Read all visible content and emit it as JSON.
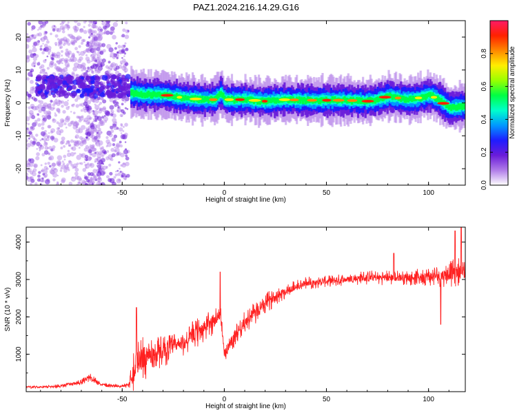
{
  "title": "PAZ1.2024.216.14.29.G16",
  "chart_data": [
    {
      "type": "heatmap",
      "xlabel": "Height of straight line (km)",
      "ylabel": "Frequency (Hz)",
      "xlim": [
        -97,
        118
      ],
      "ylim": [
        -25,
        25
      ],
      "xticks": [
        -50,
        0,
        50,
        100
      ],
      "yticks": [
        -20,
        -10,
        0,
        10,
        20
      ],
      "colorbar": {
        "label": "Normalized spectral amplitude",
        "range": [
          0.0,
          1.0
        ],
        "ticks": [
          "0.0",
          "0.2",
          "0.4",
          "0.6",
          "0.8"
        ],
        "colors": [
          "#ffffff",
          "#b07ce8",
          "#6a1cd9",
          "#1f1cff",
          "#0099ff",
          "#00ffcc",
          "#00ff44",
          "#99ff00",
          "#ffee00",
          "#ff8800",
          "#ff2200",
          "#ff1a66"
        ]
      },
      "ridge": {
        "x": [
          -46,
          -40,
          -30,
          -20,
          -10,
          -5,
          -2,
          0,
          10,
          20,
          30,
          40,
          50,
          60,
          70,
          75,
          80,
          90,
          95,
          100,
          105,
          110,
          118
        ],
        "y": [
          3.0,
          2.5,
          2.5,
          1.5,
          1.0,
          1.0,
          3.0,
          1.0,
          1.0,
          0.5,
          1.0,
          0.8,
          0.8,
          0.8,
          0.5,
          1.0,
          2.0,
          1.0,
          1.5,
          2.5,
          1.0,
          -1.5,
          -1.0
        ]
      },
      "noise_regions": [
        {
          "x": [
            -97,
            -83
          ],
          "level": 0.12
        },
        {
          "x": [
            -83,
            -60
          ],
          "level": 0.1
        },
        {
          "x": [
            -68,
            -47
          ],
          "level": 0.14
        }
      ]
    },
    {
      "type": "line",
      "xlabel": "Height of straight line (km)",
      "ylabel": "SNR (10 * v/v)",
      "xlim": [
        -97,
        118
      ],
      "ylim": [
        0,
        4400
      ],
      "xticks": [
        -50,
        0,
        50,
        100
      ],
      "yticks": [
        1000,
        2000,
        3000,
        4000
      ],
      "series": [
        {
          "color": "#ff2020",
          "x": [
            -97,
            -90,
            -80,
            -70,
            -66,
            -60,
            -55,
            -50,
            -47,
            -45,
            -43,
            -40,
            -35,
            -30,
            -25,
            -20,
            -15,
            -10,
            -5,
            -2,
            0,
            5,
            10,
            15,
            20,
            25,
            30,
            35,
            40,
            50,
            60,
            70,
            80,
            90,
            100,
            105,
            110,
            115,
            118
          ],
          "y": [
            120,
            130,
            150,
            250,
            380,
            200,
            160,
            140,
            200,
            500,
            800,
            900,
            1000,
            1100,
            1200,
            1300,
            1500,
            1700,
            1900,
            2100,
            1000,
            1500,
            1850,
            2100,
            2350,
            2550,
            2700,
            2800,
            2900,
            2950,
            3000,
            3050,
            3050,
            3050,
            3080,
            3100,
            3150,
            3200,
            3200
          ],
          "spread": [
            40,
            40,
            50,
            80,
            120,
            80,
            50,
            40,
            100,
            500,
            700,
            650,
            500,
            450,
            400,
            380,
            400,
            400,
            380,
            350,
            250,
            300,
            300,
            300,
            280,
            250,
            220,
            200,
            180,
            150,
            170,
            200,
            200,
            200,
            250,
            300,
            350,
            400,
            400
          ],
          "spikes": [
            {
              "x": -43,
              "y": 2250
            },
            {
              "x": -2,
              "y": 3200
            },
            {
              "x": 83,
              "y": 3700
            },
            {
              "x": 113,
              "y": 4300
            },
            {
              "x": 116,
              "y": 4400
            },
            {
              "x": 106,
              "y": 1800
            }
          ]
        }
      ]
    }
  ]
}
